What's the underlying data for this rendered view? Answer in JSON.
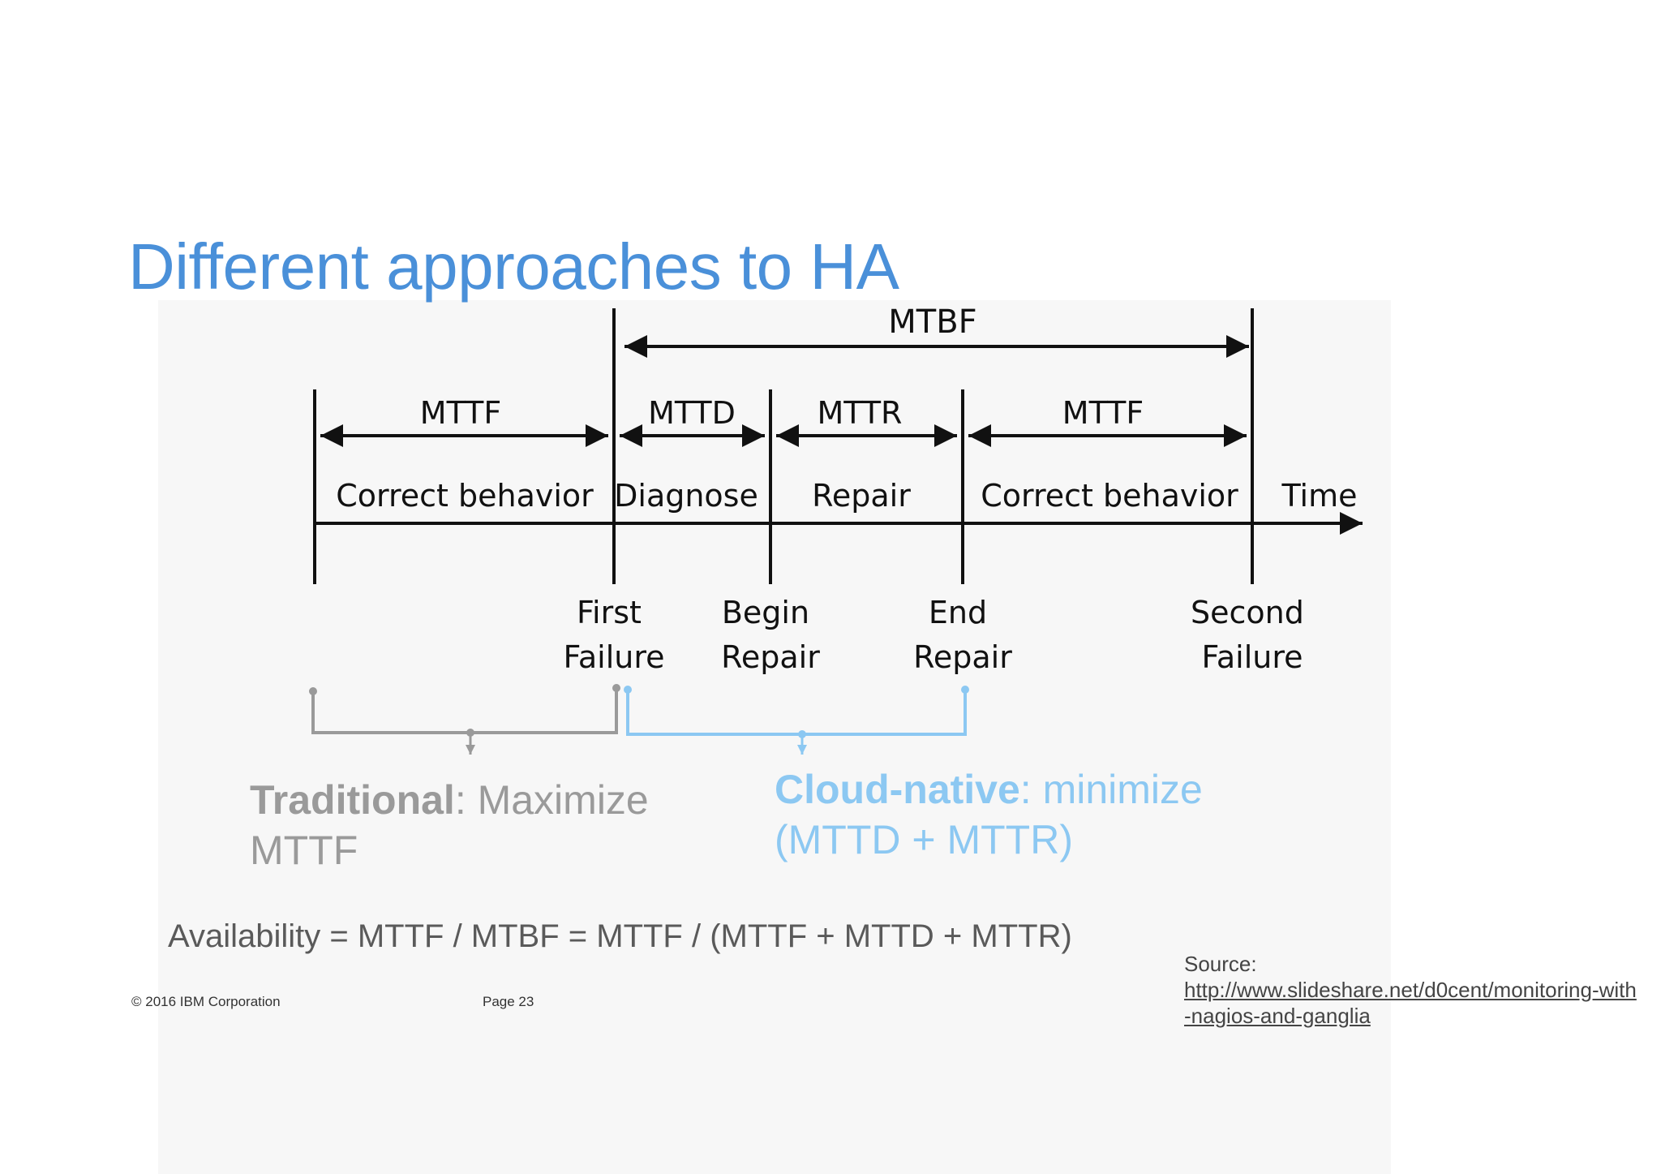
{
  "title": "Different approaches to HA",
  "diagram": {
    "mtbf_label": "MTBF",
    "intervals": [
      {
        "label": "MTTF",
        "phase": "Correct behavior"
      },
      {
        "label": "MTTD",
        "phase": "Diagnose"
      },
      {
        "label": "MTTR",
        "phase": "Repair"
      },
      {
        "label": "MTTF",
        "phase": "Correct behavior"
      }
    ],
    "axis_label": "Time",
    "events": [
      {
        "line1": "First",
        "line2": "Failure"
      },
      {
        "line1": "Begin",
        "line2": "Repair"
      },
      {
        "line1": "End",
        "line2": "Repair"
      },
      {
        "line1": "Second",
        "line2": "Failure"
      }
    ],
    "colors": {
      "traditional": "#9a9a9a",
      "cloud": "#8cc8f2",
      "ink": "#111111"
    }
  },
  "traditional": {
    "bold": "Traditional",
    "rest": ": Maximize MTTF"
  },
  "cloud_native": {
    "bold": "Cloud-native",
    "rest": ":  minimize (MTTD + MTTR)"
  },
  "formula": "Availability = MTTF / MTBF = MTTF / (MTTF + MTTD + MTTR)",
  "footer": {
    "copyright": "© 2016 IBM Corporation",
    "page": "Page 23"
  },
  "source": {
    "label": "Source:",
    "url": "http://www.slideshare.net/d0cent/monitoring-with-nagios-and-ganglia"
  }
}
